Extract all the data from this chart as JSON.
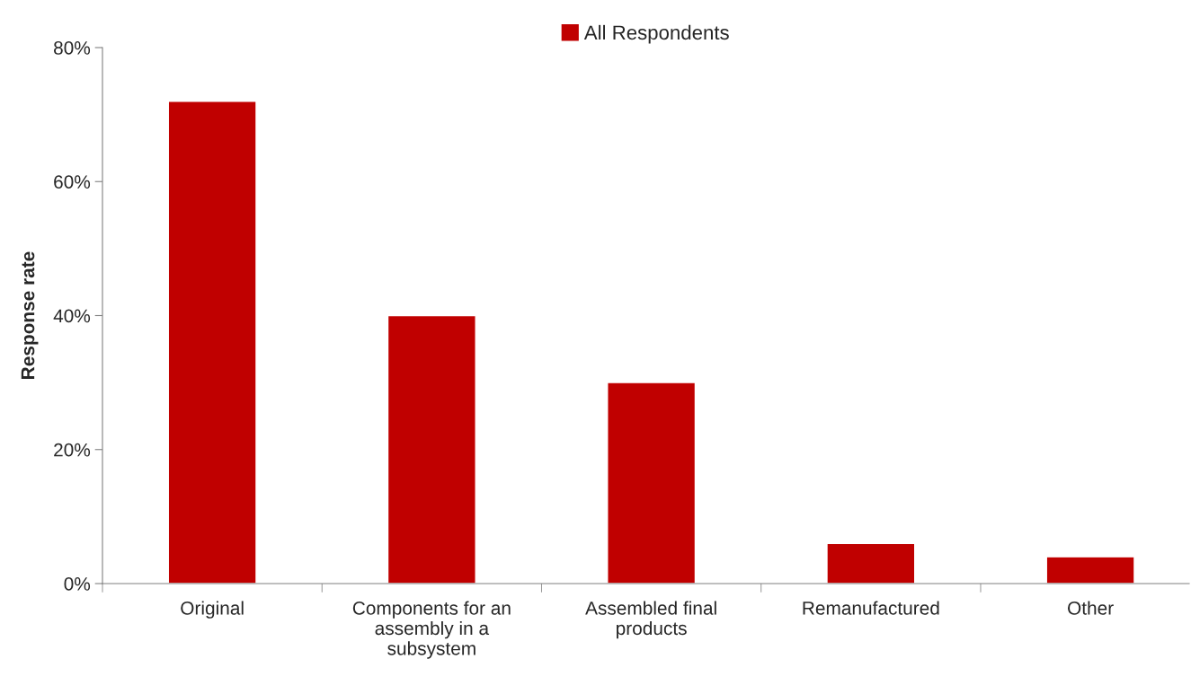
{
  "chart_data": {
    "type": "bar",
    "ylabel": "Response rate",
    "categories": [
      "Original",
      "Components for an\nassembly in a\nsubsystem",
      "Assembled final\nproducts",
      "Remanufactured",
      "Other"
    ],
    "series": [
      {
        "name": "All Respondents",
        "color": "#c00000",
        "values": [
          72,
          40,
          30,
          6,
          4
        ]
      }
    ],
    "ylim": [
      0,
      80
    ],
    "yticks": [
      {
        "value": 0,
        "label": "0%"
      },
      {
        "value": 20,
        "label": "20%"
      },
      {
        "value": 40,
        "label": "40%"
      },
      {
        "value": 60,
        "label": "60%"
      },
      {
        "value": 80,
        "label": "80%"
      }
    ],
    "grid": false,
    "legend": "top"
  }
}
